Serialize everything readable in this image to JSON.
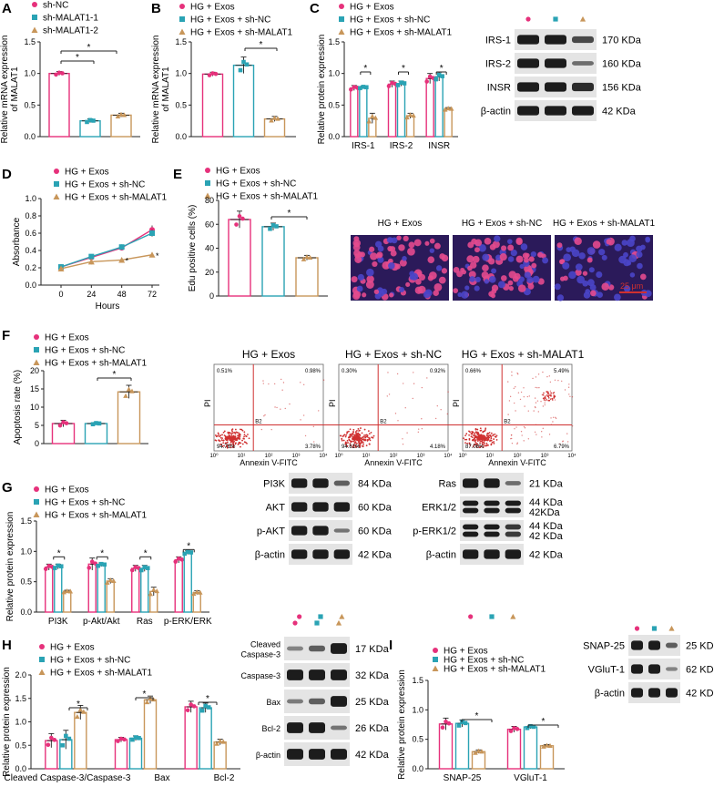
{
  "colors": {
    "pink": "#e6317b",
    "teal": "#2aa3b4",
    "tan": "#c8965a",
    "grey": "#7a7a7a",
    "red": "#cf3030"
  },
  "panels": {
    "A": "A",
    "B": "B",
    "C": "C",
    "D": "D",
    "E": "E",
    "F": "F",
    "G": "G",
    "H": "H",
    "I": "I"
  },
  "star": "*",
  "chart_data": [
    {
      "id": "A",
      "type": "bar",
      "ylabel": "Relative mRNA expression of MALAT1",
      "ylim": [
        0,
        1.5
      ],
      "yticks": [
        "0.0",
        "0.5",
        "1.0",
        "1.5"
      ],
      "legend": [
        "sh-NC",
        "sh-MALAT1-1",
        "sh-MALAT1-2"
      ],
      "series": [
        {
          "name": "sh-NC",
          "values": [
            1.0
          ],
          "err": [
            0.03
          ]
        },
        {
          "name": "sh-MALAT1-1",
          "values": [
            0.25
          ],
          "err": [
            0.03
          ]
        },
        {
          "name": "sh-MALAT1-2",
          "values": [
            0.34
          ],
          "err": [
            0.03
          ]
        }
      ]
    },
    {
      "id": "B",
      "type": "bar",
      "ylabel": "Relative mRNA expression of MALAT1",
      "ylim": [
        0,
        1.5
      ],
      "yticks": [
        "0.0",
        "0.5",
        "1.0",
        "1.5"
      ],
      "legend": [
        "HG + Exos",
        "HG + Exos + sh-NC",
        "HG + Exos + sh-MALAT1"
      ],
      "series": [
        {
          "name": "HG + Exos",
          "values": [
            0.99
          ],
          "err": [
            0.03
          ]
        },
        {
          "name": "HG + Exos + sh-NC",
          "values": [
            1.13
          ],
          "err": [
            0.13
          ]
        },
        {
          "name": "HG + Exos + sh-MALAT1",
          "values": [
            0.28
          ],
          "err": [
            0.04
          ]
        }
      ]
    },
    {
      "id": "C",
      "type": "bar",
      "ylabel": "Relative protein expression",
      "ylim": [
        0,
        1.5
      ],
      "yticks": [
        "0.0",
        "0.5",
        "1.0",
        "1.5"
      ],
      "categories": [
        "IRS-1",
        "IRS-2",
        "INSR"
      ],
      "legend": [
        "HG + Exos",
        "HG + Exos + sh-NC",
        "HG + Exos + sh-MALAT1"
      ],
      "series": [
        {
          "name": "HG + Exos",
          "values": [
            0.77,
            0.83,
            0.92
          ],
          "err": [
            0.04,
            0.05,
            0.08
          ]
        },
        {
          "name": "HG + Exos + sh-NC",
          "values": [
            0.78,
            0.84,
            0.95
          ],
          "err": [
            0.02,
            0.04,
            0.07
          ]
        },
        {
          "name": "HG + Exos + sh-MALAT1",
          "values": [
            0.29,
            0.33,
            0.44
          ],
          "err": [
            0.08,
            0.04,
            0.02
          ]
        }
      ]
    },
    {
      "id": "D",
      "type": "line",
      "ylabel": "Absorbance",
      "xlabel": "Hours",
      "ylim": [
        0,
        1.0
      ],
      "yticks": [
        "0.0",
        "0.2",
        "0.4",
        "0.6",
        "0.8",
        "1.0"
      ],
      "x": [
        0,
        24,
        48,
        72
      ],
      "legend": [
        "HG + Exos",
        "HG + Exos + sh-NC",
        "HG + Exos + sh-MALAT1"
      ],
      "series": [
        {
          "name": "HG + Exos",
          "values": [
            0.21,
            0.32,
            0.43,
            0.64
          ],
          "err": [
            0.02,
            0.03,
            0.03,
            0.05
          ]
        },
        {
          "name": "HG + Exos + sh-NC",
          "values": [
            0.21,
            0.33,
            0.44,
            0.6
          ],
          "err": [
            0.02,
            0.02,
            0.03,
            0.04
          ]
        },
        {
          "name": "HG + Exos + sh-MALAT1",
          "values": [
            0.19,
            0.27,
            0.29,
            0.35
          ],
          "err": [
            0.02,
            0.03,
            0.02,
            0.02
          ]
        }
      ]
    },
    {
      "id": "E",
      "type": "bar",
      "ylabel": "Edu positive cells (%)",
      "ylim": [
        0,
        80
      ],
      "yticks": [
        "0",
        "20",
        "40",
        "60",
        "80"
      ],
      "legend": [
        "HG + Exos",
        "HG + Exos + sh-NC",
        "HG + Exos + sh-MALAT1"
      ],
      "series": [
        {
          "name": "HG + Exos",
          "values": [
            64
          ],
          "err": [
            7
          ]
        },
        {
          "name": "HG + Exos + sh-NC",
          "values": [
            58
          ],
          "err": [
            3
          ]
        },
        {
          "name": "HG + Exos + sh-MALAT1",
          "values": [
            32
          ],
          "err": [
            2
          ]
        }
      ]
    },
    {
      "id": "F",
      "type": "bar",
      "ylabel": "Apoptosis rate (%)",
      "ylim": [
        0,
        20
      ],
      "yticks": [
        "0",
        "5",
        "10",
        "15",
        "20"
      ],
      "legend": [
        "HG + Exos",
        "HG + Exos + sh-NC",
        "HG + Exos + sh-MALAT1"
      ],
      "series": [
        {
          "name": "HG + Exos",
          "values": [
            5.5
          ],
          "err": [
            0.9
          ]
        },
        {
          "name": "HG + Exos + sh-NC",
          "values": [
            5.5
          ],
          "err": [
            0.3
          ]
        },
        {
          "name": "HG + Exos + sh-MALAT1",
          "values": [
            14.2
          ],
          "err": [
            1.8
          ]
        }
      ]
    },
    {
      "id": "G",
      "type": "bar",
      "ylabel": "Relative protein expression",
      "ylim": [
        0,
        1.5
      ],
      "yticks": [
        "0.0",
        "0.5",
        "1.0",
        "1.5"
      ],
      "categories": [
        "PI3K",
        "p-Akt/Akt",
        "Ras",
        "p-ERK/ERK"
      ],
      "legend": [
        "HG + Exos",
        "HG + Exos + sh-NC",
        "HG + Exos + sh-MALAT1"
      ],
      "series": [
        {
          "name": "HG + Exos",
          "values": [
            0.74,
            0.79,
            0.72,
            0.86
          ],
          "err": [
            0.05,
            0.1,
            0.05,
            0.05
          ]
        },
        {
          "name": "HG + Exos + sh-NC",
          "values": [
            0.75,
            0.78,
            0.72,
            0.98
          ],
          "err": [
            0.04,
            0.03,
            0.05,
            0.03
          ]
        },
        {
          "name": "HG + Exos + sh-MALAT1",
          "values": [
            0.34,
            0.51,
            0.34,
            0.32
          ],
          "err": [
            0.02,
            0.04,
            0.07,
            0.03
          ]
        }
      ]
    },
    {
      "id": "H",
      "type": "bar",
      "ylabel": "Relative protein expression",
      "ylim": [
        0,
        2.0
      ],
      "yticks": [
        "0.0",
        "0.5",
        "1.0",
        "1.5",
        "2.0"
      ],
      "categories": [
        "Cleaved Caspase-3/Caspase-3",
        "Bax",
        "Bcl-2"
      ],
      "legend": [
        "HG + Exos",
        "HG + Exos + sh-NC",
        "HG + Exos + sh-MALAT1"
      ],
      "series": [
        {
          "name": "HG + Exos",
          "values": [
            0.6,
            0.62,
            1.32
          ],
          "err": [
            0.15,
            0.05,
            0.12
          ]
        },
        {
          "name": "HG + Exos + sh-NC",
          "values": [
            0.62,
            0.65,
            1.3
          ],
          "err": [
            0.2,
            0.05,
            0.1
          ]
        },
        {
          "name": "HG + Exos + sh-MALAT1",
          "values": [
            1.2,
            1.47,
            0.57
          ],
          "err": [
            0.15,
            0.08,
            0.06
          ]
        }
      ]
    },
    {
      "id": "I",
      "type": "bar",
      "ylabel": "Relative protein expression",
      "ylim": [
        0,
        1.5
      ],
      "yticks": [
        "0.0",
        "0.5",
        "1.0",
        "1.5"
      ],
      "categories": [
        "SNAP-25",
        "VGluT-1"
      ],
      "legend": [
        "HG + Exos",
        "HG + Exos + sh-NC",
        "HG + Exos + sh-MALAT1"
      ],
      "series": [
        {
          "name": "HG + Exos",
          "values": [
            0.76,
            0.67
          ],
          "err": [
            0.1,
            0.05
          ]
        },
        {
          "name": "HG + Exos + sh-NC",
          "values": [
            0.77,
            0.71
          ],
          "err": [
            0.06,
            0.03
          ]
        },
        {
          "name": "HG + Exos + sh-MALAT1",
          "values": [
            0.29,
            0.39
          ],
          "err": [
            0.03,
            0.02
          ]
        }
      ]
    }
  ],
  "blots": {
    "C": {
      "rows": [
        {
          "protein": "IRS-1",
          "kda": "170 KDa"
        },
        {
          "protein": "IRS-2",
          "kda": "160 KDa"
        },
        {
          "protein": "INSR",
          "kda": "156 KDa"
        },
        {
          "protein": "β-actin",
          "kda": "42 KDa"
        }
      ]
    },
    "G1": {
      "rows": [
        {
          "protein": "PI3K",
          "kda": "84 KDa"
        },
        {
          "protein": "AKT",
          "kda": "60 KDa"
        },
        {
          "protein": "p-AKT",
          "kda": "60 KDa"
        },
        {
          "protein": "β-actin",
          "kda": "42 KDa"
        }
      ]
    },
    "G2": {
      "rows": [
        {
          "protein": "Ras",
          "kda": "21 KDa"
        },
        {
          "protein": "ERK1/2",
          "kda": "44 KDa\n42KDa"
        },
        {
          "protein": "p-ERK1/2",
          "kda": "44 KDa\n42 KDa"
        },
        {
          "protein": "β-actin",
          "kda": "42 KDa"
        }
      ]
    },
    "H": {
      "rows": [
        {
          "protein": "Cleaved\nCaspase-3",
          "kda": "17 KDa"
        },
        {
          "protein": "Caspase-3",
          "kda": "32 KDa"
        },
        {
          "protein": "Bax",
          "kda": "25 KDa"
        },
        {
          "protein": "Bcl-2",
          "kda": "26 KDa"
        },
        {
          "protein": "β-actin",
          "kda": "42 KDa"
        }
      ]
    },
    "I": {
      "rows": [
        {
          "protein": "SNAP-25",
          "kda": "25 KDa"
        },
        {
          "protein": "VGluT-1",
          "kda": "62 KDa"
        },
        {
          "protein": "β-actin",
          "kda": "42 KDa"
        }
      ]
    }
  },
  "micro": {
    "titles": [
      "HG + Exos",
      "HG + Exos + sh-NC",
      "HG + Exos + sh-MALAT1"
    ],
    "scale": "25 μm"
  },
  "flow": {
    "titles": [
      "HG + Exos",
      "HG + Exos + sh-NC",
      "HG + Exos + sh-MALAT1"
    ],
    "xlabel": "Annexin V-FITC",
    "ylabel": "PI",
    "gate": "B2",
    "quadrants": [
      {
        "ul": "0.51%",
        "ur": "0.98%",
        "ll": "94.76%",
        "lr": "3.78%"
      },
      {
        "ul": "0.30%",
        "ur": "0.92%",
        "ll": "94.61%",
        "lr": "4.18%"
      },
      {
        "ul": "0.66%",
        "ur": "5.49%",
        "ll": "87.06%",
        "lr": "6.79%"
      }
    ],
    "ticks": [
      "10⁰",
      "10¹",
      "10²",
      "10³",
      "10⁴"
    ]
  },
  "d_xticks": [
    "0",
    "24",
    "48",
    "72"
  ]
}
